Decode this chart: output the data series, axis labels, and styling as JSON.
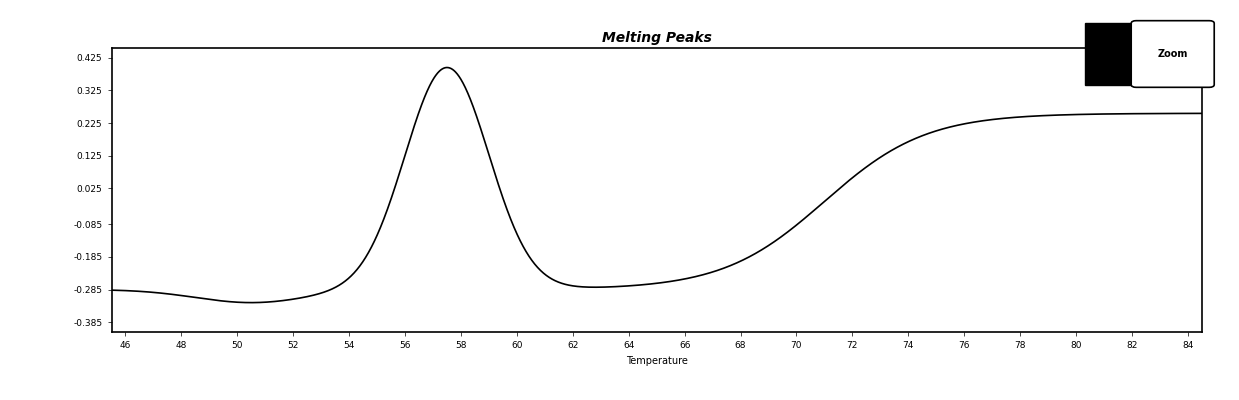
{
  "title": "Melting Peaks",
  "xlabel": "Temperature",
  "ylabel": "",
  "xlim": [
    45.5,
    84.5
  ],
  "ylim": [
    -0.415,
    0.455
  ],
  "xticks": [
    46,
    48,
    50,
    52,
    54,
    56,
    58,
    60,
    62,
    64,
    66,
    68,
    70,
    72,
    74,
    76,
    78,
    80,
    82,
    84
  ],
  "yticks": [
    0.425,
    0.325,
    0.225,
    0.125,
    0.025,
    -0.085,
    -0.185,
    -0.285,
    -0.385
  ],
  "line_color": "#000000",
  "line_width": 1.2,
  "background_color": "#ffffff",
  "title_fontsize": 10,
  "axis_fontsize": 7,
  "tick_fontsize": 6.5,
  "zoom_button_text": "Zoom"
}
